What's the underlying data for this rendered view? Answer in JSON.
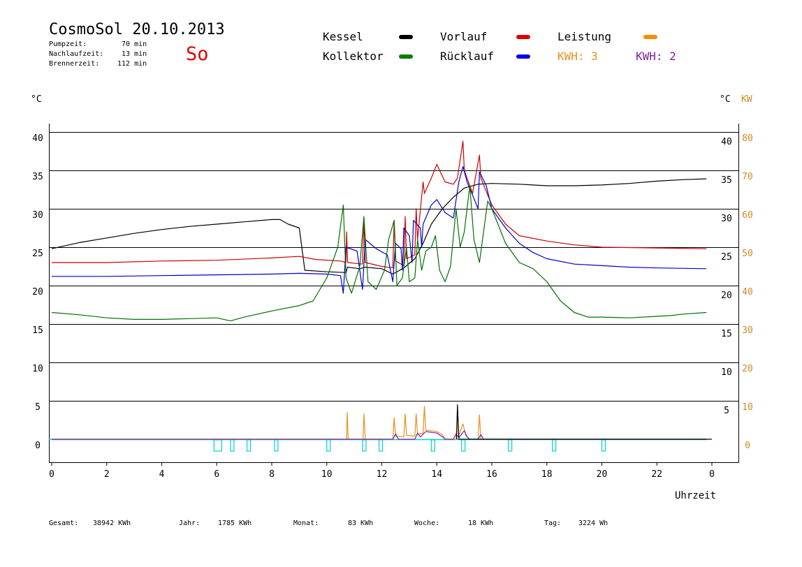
{
  "header": {
    "title": "CosmoSol 20.10.2013",
    "day": "So",
    "stats": [
      {
        "label": "Pumpzeit:",
        "value": "70 min"
      },
      {
        "label": "Nachlaufzeit:",
        "value": "13 min"
      },
      {
        "label": "Brennerzeit:",
        "value": "112 min"
      }
    ]
  },
  "legend": [
    {
      "label": "Kessel",
      "color": "#000000"
    },
    {
      "label": "Vorlauf",
      "color": "#e00000"
    },
    {
      "label": "Leistung",
      "color": "#ff8c00"
    },
    {
      "label": "Kollektor",
      "color": "#008000"
    },
    {
      "label": "Rücklauf",
      "color": "#0000e0"
    },
    {
      "label": "KWH: 3",
      "color": "#e8901c"
    },
    {
      "label": "KWH: 2",
      "color": "#7b1fa2"
    }
  ],
  "footer": [
    {
      "label": "Gesamt:",
      "value": "38942 KWh"
    },
    {
      "label": "Jahr:",
      "value": "1785 KWh"
    },
    {
      "label": "Monat:",
      "value": "83 KWh"
    },
    {
      "label": "Woche:",
      "value": "18 KWh"
    },
    {
      "label": "Tag:",
      "value": "3224 Wh"
    }
  ],
  "chart_data": {
    "type": "line",
    "xlabel": "Uhrzeit",
    "ylabel_left": "°C",
    "ylabel_right_temp": "°C",
    "ylabel_right_power": "KW",
    "xlim": [
      0,
      24
    ],
    "ylim": [
      -3,
      42
    ],
    "x_ticks": [
      "0",
      "2",
      "4",
      "6",
      "8",
      "10",
      "12",
      "14",
      "16",
      "18",
      "20",
      "22",
      "0"
    ],
    "y_ticks_left": [
      "0",
      "5",
      "10",
      "15",
      "20",
      "25",
      "30",
      "35",
      "40"
    ],
    "y_ticks_right_temp": [
      "5",
      "10",
      "15",
      "20",
      "25",
      "30",
      "35",
      "40"
    ],
    "y_ticks_right_power": [
      "0",
      "10",
      "20",
      "30",
      "40",
      "50",
      "60",
      "70",
      "80"
    ],
    "gridlines_y": [
      5,
      10,
      15,
      20,
      25,
      30,
      35,
      40
    ],
    "series": [
      {
        "name": "Kessel",
        "color": "#000000",
        "points": [
          [
            0,
            24.8
          ],
          [
            1,
            25.6
          ],
          [
            2,
            26.2
          ],
          [
            3,
            26.8
          ],
          [
            4,
            27.3
          ],
          [
            5,
            27.7
          ],
          [
            6,
            28.0
          ],
          [
            7,
            28.3
          ],
          [
            8,
            28.6
          ],
          [
            8.3,
            28.6
          ],
          [
            8.6,
            28.0
          ],
          [
            9.0,
            27.5
          ],
          [
            9.2,
            22.0
          ],
          [
            10,
            21.8
          ],
          [
            10.7,
            21.7
          ],
          [
            10.75,
            22.4
          ],
          [
            11.2,
            22.2
          ],
          [
            11.4,
            22.4
          ],
          [
            12,
            22.2
          ],
          [
            12.4,
            21.5
          ],
          [
            12.8,
            22.3
          ],
          [
            13.2,
            23.5
          ],
          [
            13.5,
            25.5
          ],
          [
            13.8,
            28.0
          ],
          [
            14.2,
            30.0
          ],
          [
            14.6,
            31.5
          ],
          [
            15.0,
            32.7
          ],
          [
            15.5,
            33.2
          ],
          [
            16,
            33.3
          ],
          [
            17,
            33.2
          ],
          [
            18,
            33.0
          ],
          [
            19,
            33.0
          ],
          [
            20,
            33.1
          ],
          [
            21,
            33.3
          ],
          [
            22,
            33.6
          ],
          [
            23,
            33.8
          ],
          [
            23.8,
            33.9
          ]
        ]
      },
      {
        "name": "Vorlauf",
        "color": "#cc0000",
        "points": [
          [
            0,
            23.0
          ],
          [
            2,
            23.0
          ],
          [
            4,
            23.2
          ],
          [
            6,
            23.3
          ],
          [
            8,
            23.6
          ],
          [
            9,
            23.8
          ],
          [
            9.6,
            23.4
          ],
          [
            10.5,
            23.2
          ],
          [
            10.7,
            23.0
          ],
          [
            10.72,
            27.0
          ],
          [
            10.76,
            23.0
          ],
          [
            11.3,
            22.8
          ],
          [
            11.35,
            28.5
          ],
          [
            11.4,
            23.0
          ],
          [
            12,
            22.5
          ],
          [
            12.4,
            22.3
          ],
          [
            12.45,
            28.5
          ],
          [
            12.5,
            23.2
          ],
          [
            12.8,
            22.6
          ],
          [
            12.85,
            29.0
          ],
          [
            12.9,
            23.5
          ],
          [
            13.2,
            24.0
          ],
          [
            13.25,
            30.0
          ],
          [
            13.3,
            26.0
          ],
          [
            13.5,
            33.5
          ],
          [
            13.55,
            32.0
          ],
          [
            13.8,
            34.0
          ],
          [
            14.0,
            35.8
          ],
          [
            14.1,
            35.0
          ],
          [
            14.3,
            33.5
          ],
          [
            14.6,
            33.2
          ],
          [
            14.75,
            34.0
          ],
          [
            14.95,
            38.8
          ],
          [
            15.0,
            35.0
          ],
          [
            15.3,
            32.0
          ],
          [
            15.55,
            37.0
          ],
          [
            15.6,
            34.0
          ],
          [
            16,
            30.5
          ],
          [
            16.5,
            28.0
          ],
          [
            17,
            26.5
          ],
          [
            18,
            25.8
          ],
          [
            19,
            25.3
          ],
          [
            20,
            25.0
          ],
          [
            22,
            24.9
          ],
          [
            23.8,
            24.8
          ]
        ]
      },
      {
        "name": "Rücklauf",
        "color": "#0000cc",
        "points": [
          [
            0,
            21.2
          ],
          [
            2,
            21.2
          ],
          [
            4,
            21.3
          ],
          [
            6,
            21.4
          ],
          [
            8,
            21.5
          ],
          [
            9,
            21.6
          ],
          [
            10,
            21.5
          ],
          [
            10.5,
            21.3
          ],
          [
            10.6,
            19.0
          ],
          [
            10.7,
            25.0
          ],
          [
            11.1,
            24.5
          ],
          [
            11.3,
            19.5
          ],
          [
            11.4,
            26.0
          ],
          [
            11.8,
            24.8
          ],
          [
            12.2,
            24.0
          ],
          [
            12.4,
            20.5
          ],
          [
            12.5,
            25.5
          ],
          [
            12.7,
            24.8
          ],
          [
            12.75,
            22.0
          ],
          [
            12.8,
            27.5
          ],
          [
            13.0,
            26.5
          ],
          [
            13.1,
            23.0
          ],
          [
            13.15,
            28.5
          ],
          [
            13.4,
            27.5
          ],
          [
            13.45,
            25.0
          ],
          [
            13.5,
            28.0
          ],
          [
            13.8,
            30.5
          ],
          [
            14.0,
            31.2
          ],
          [
            14.3,
            29.5
          ],
          [
            14.6,
            28.8
          ],
          [
            14.8,
            33.5
          ],
          [
            14.95,
            35.5
          ],
          [
            15.1,
            33.5
          ],
          [
            15.3,
            31.8
          ],
          [
            15.5,
            30.0
          ],
          [
            15.55,
            34.8
          ],
          [
            15.8,
            33.0
          ],
          [
            16,
            30.0
          ],
          [
            16.5,
            27.5
          ],
          [
            17,
            25.5
          ],
          [
            17.5,
            24.3
          ],
          [
            18,
            23.5
          ],
          [
            19,
            22.8
          ],
          [
            20,
            22.6
          ],
          [
            21,
            22.4
          ],
          [
            22,
            22.3
          ],
          [
            23.8,
            22.2
          ]
        ]
      },
      {
        "name": "Kollektor",
        "color": "#007000",
        "points": [
          [
            0,
            16.5
          ],
          [
            1,
            16.2
          ],
          [
            2,
            15.8
          ],
          [
            3,
            15.6
          ],
          [
            4,
            15.6
          ],
          [
            5,
            15.7
          ],
          [
            6,
            15.8
          ],
          [
            6.5,
            15.4
          ],
          [
            7,
            15.9
          ],
          [
            7.5,
            16.3
          ],
          [
            8,
            16.7
          ],
          [
            9,
            17.4
          ],
          [
            9.5,
            18.0
          ],
          [
            10.0,
            21.0
          ],
          [
            10.4,
            25.0
          ],
          [
            10.6,
            30.5
          ],
          [
            10.7,
            21.0
          ],
          [
            10.9,
            19.0
          ],
          [
            11.2,
            22.5
          ],
          [
            11.35,
            29.0
          ],
          [
            11.5,
            20.5
          ],
          [
            11.8,
            19.5
          ],
          [
            12.1,
            22.0
          ],
          [
            12.25,
            26.0
          ],
          [
            12.45,
            28.5
          ],
          [
            12.55,
            20.0
          ],
          [
            12.75,
            21.0
          ],
          [
            12.9,
            25.0
          ],
          [
            13.0,
            20.5
          ],
          [
            13.2,
            21.0
          ],
          [
            13.3,
            26.0
          ],
          [
            13.45,
            22.0
          ],
          [
            13.6,
            24.5
          ],
          [
            13.8,
            25.0
          ],
          [
            13.95,
            26.5
          ],
          [
            14.1,
            22.0
          ],
          [
            14.3,
            20.5
          ],
          [
            14.5,
            22.5
          ],
          [
            14.7,
            30.0
          ],
          [
            14.85,
            25.0
          ],
          [
            15.0,
            27.0
          ],
          [
            15.2,
            33.0
          ],
          [
            15.35,
            26.0
          ],
          [
            15.55,
            23.0
          ],
          [
            15.7,
            27.0
          ],
          [
            15.85,
            31.0
          ],
          [
            16.0,
            30.0
          ],
          [
            16.5,
            25.5
          ],
          [
            17,
            23.0
          ],
          [
            17.5,
            22.2
          ],
          [
            18,
            20.5
          ],
          [
            18.5,
            18.0
          ],
          [
            19,
            16.5
          ],
          [
            19.5,
            15.9
          ],
          [
            20,
            15.9
          ],
          [
            21,
            15.8
          ],
          [
            22,
            16.0
          ],
          [
            22.5,
            16.1
          ],
          [
            23,
            16.3
          ],
          [
            23.8,
            16.5
          ]
        ]
      },
      {
        "name": "Leistung",
        "color": "#e8901c",
        "points": [
          [
            0,
            0
          ],
          [
            10.72,
            0
          ],
          [
            10.74,
            3.5
          ],
          [
            10.78,
            0
          ],
          [
            11.32,
            0
          ],
          [
            11.35,
            3.3
          ],
          [
            11.4,
            0
          ],
          [
            12.4,
            0
          ],
          [
            12.45,
            2.8
          ],
          [
            12.5,
            0.4
          ],
          [
            12.8,
            0.3
          ],
          [
            12.85,
            3.3
          ],
          [
            12.9,
            0.5
          ],
          [
            13.2,
            0.4
          ],
          [
            13.25,
            3.3
          ],
          [
            13.3,
            0.6
          ],
          [
            13.5,
            0.8
          ],
          [
            13.55,
            4.3
          ],
          [
            13.6,
            1.2
          ],
          [
            14.0,
            1.0
          ],
          [
            14.2,
            0.6
          ],
          [
            14.3,
            0
          ],
          [
            14.7,
            0
          ],
          [
            14.75,
            4.2
          ],
          [
            14.8,
            0.5
          ],
          [
            14.95,
            2.0
          ],
          [
            15.05,
            0.5
          ],
          [
            15.2,
            0
          ],
          [
            15.5,
            0
          ],
          [
            15.55,
            3.2
          ],
          [
            15.6,
            0
          ],
          [
            23.8,
            0
          ]
        ]
      },
      {
        "name": "KWH: 2",
        "color": "#7b1fa2",
        "points": [
          [
            0,
            0
          ],
          [
            12.4,
            0
          ],
          [
            12.5,
            0.7
          ],
          [
            12.6,
            0
          ],
          [
            13.2,
            0
          ],
          [
            13.3,
            0.8
          ],
          [
            13.4,
            0.3
          ],
          [
            13.6,
            1.0
          ],
          [
            14.0,
            0.8
          ],
          [
            14.25,
            0.2
          ],
          [
            14.3,
            0
          ],
          [
            14.6,
            0
          ],
          [
            14.7,
            0.7
          ],
          [
            14.8,
            0.2
          ],
          [
            15.0,
            1.1
          ],
          [
            15.1,
            0.3
          ],
          [
            15.2,
            0
          ],
          [
            15.5,
            0
          ],
          [
            15.6,
            0.6
          ],
          [
            15.7,
            0
          ],
          [
            23.8,
            0
          ]
        ]
      }
    ],
    "overlays": [
      {
        "name": "Kessel",
        "color": "#000000",
        "points": [
          [
            14.72,
            0
          ],
          [
            14.75,
            4.5
          ],
          [
            14.8,
            0
          ],
          [
            23.8,
            0
          ],
          [
            24,
            0
          ]
        ]
      }
    ],
    "pump_line": {
      "color": "#00d0d0",
      "y": 0
    },
    "pump_markers_hours": [
      5.9,
      6.5,
      7.1,
      8.1,
      10.0,
      11.3,
      11.9,
      13.8,
      14.9,
      16.6,
      18.2,
      20.0
    ]
  }
}
